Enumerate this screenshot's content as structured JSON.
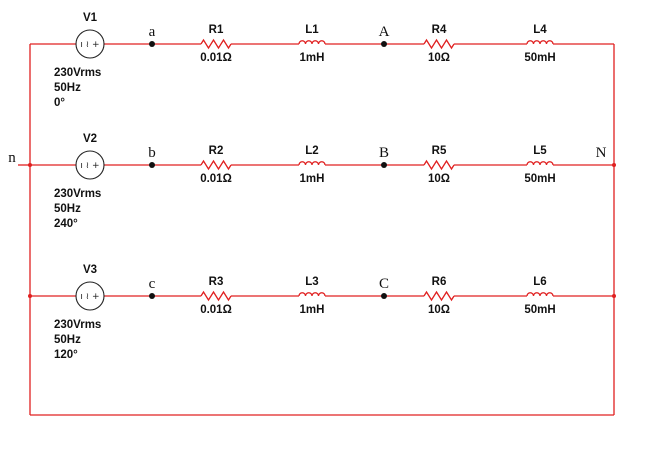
{
  "phases": [
    {
      "source": {
        "name": "V1",
        "voltage": "230Vrms",
        "frequency": "50Hz",
        "phase": "0°"
      },
      "source_node": "a",
      "mid_node": "A",
      "components": [
        {
          "name": "R1",
          "value": "0.01Ω",
          "type": "resistor"
        },
        {
          "name": "L1",
          "value": "1mH",
          "type": "inductor"
        },
        {
          "name": "R4",
          "value": "10Ω",
          "type": "resistor"
        },
        {
          "name": "L4",
          "value": "50mH",
          "type": "inductor"
        }
      ]
    },
    {
      "source": {
        "name": "V2",
        "voltage": "230Vrms",
        "frequency": "50Hz",
        "phase": "240°"
      },
      "source_node": "b",
      "mid_node": "B",
      "components": [
        {
          "name": "R2",
          "value": "0.01Ω",
          "type": "resistor"
        },
        {
          "name": "L2",
          "value": "1mH",
          "type": "inductor"
        },
        {
          "name": "R5",
          "value": "10Ω",
          "type": "resistor"
        },
        {
          "name": "L5",
          "value": "50mH",
          "type": "inductor"
        }
      ]
    },
    {
      "source": {
        "name": "V3",
        "voltage": "230Vrms",
        "frequency": "50Hz",
        "phase": "120°"
      },
      "source_node": "c",
      "mid_node": "C",
      "components": [
        {
          "name": "R3",
          "value": "0.01Ω",
          "type": "resistor"
        },
        {
          "name": "L3",
          "value": "1mH",
          "type": "inductor"
        },
        {
          "name": "R6",
          "value": "10Ω",
          "type": "resistor"
        },
        {
          "name": "L6",
          "value": "50mH",
          "type": "inductor"
        }
      ]
    }
  ],
  "neutral_source": "n",
  "neutral_load": "N",
  "source_glyph": "ı ≀ +"
}
